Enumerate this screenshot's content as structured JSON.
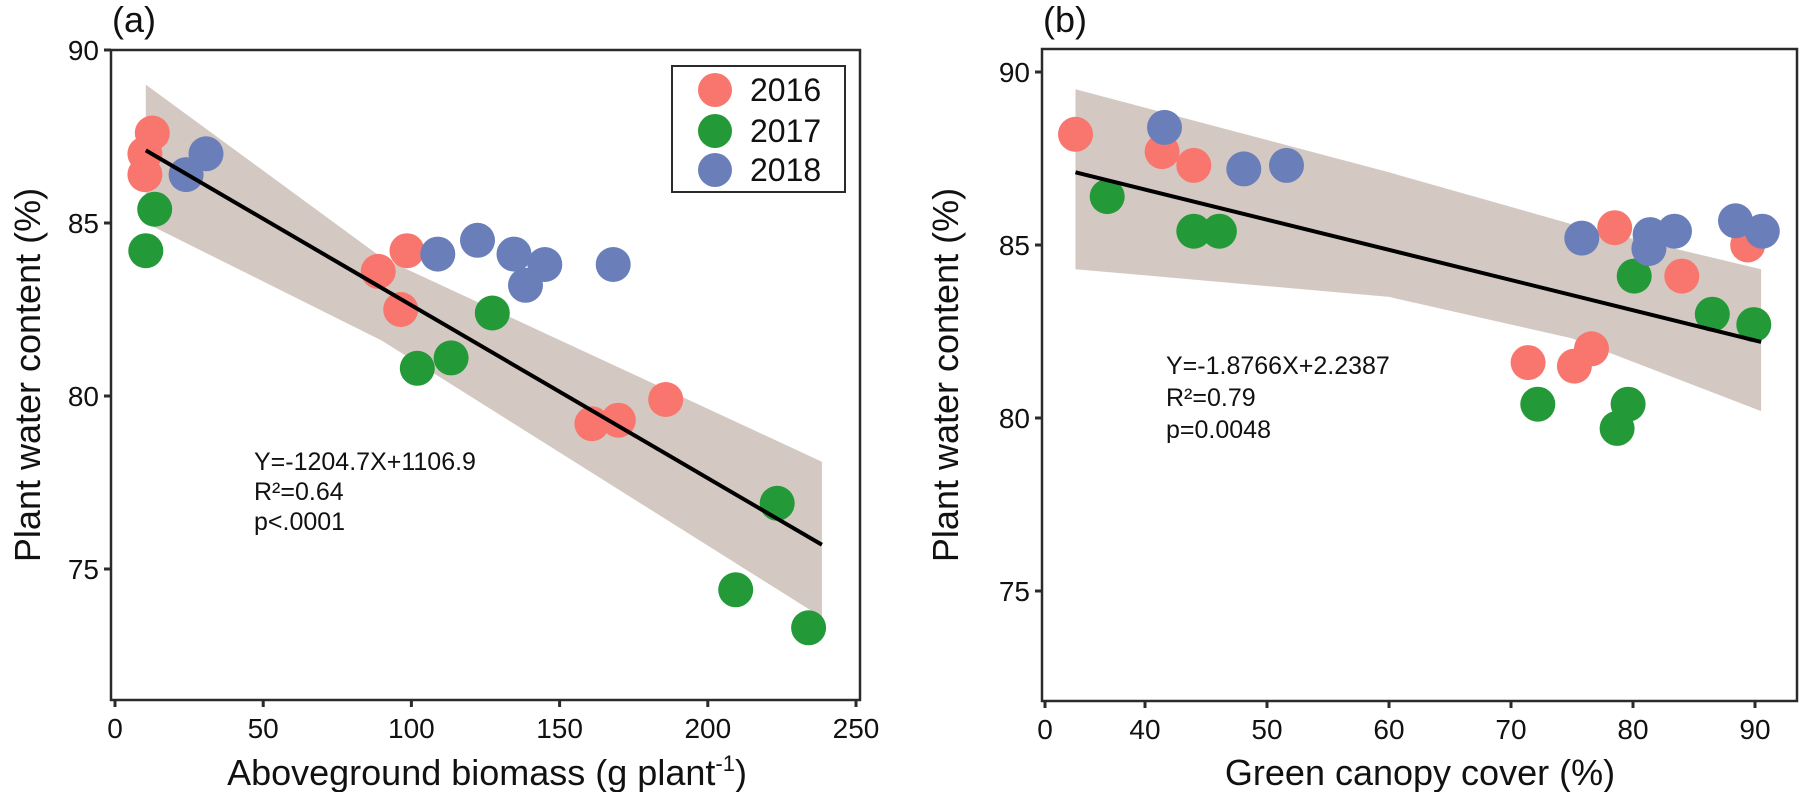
{
  "chart_data": [
    {
      "type": "scatter",
      "panel_label": "(a)",
      "title": "",
      "xlabel": "Aboveground biomass (g plant",
      "xlabel_superscript": "-1",
      "xlabel_suffix": ")",
      "ylabel": "Plant water content (%)",
      "xlim": [
        0,
        250
      ],
      "ylim": [
        71.6,
        90
      ],
      "xticks": [
        0,
        50,
        100,
        150,
        200,
        250
      ],
      "xtick_labels": [
        "0",
        "50",
        "100",
        "150",
        "200",
        "250"
      ],
      "yticks": [
        75,
        80,
        85,
        90
      ],
      "ytick_labels": [
        "75",
        "80",
        "85",
        "90"
      ],
      "grid": false,
      "legend": {
        "placement": "top-right",
        "entries": [
          "2016",
          "2017",
          "2018"
        ]
      },
      "series": [
        {
          "name": "2016",
          "color": "#F8766D",
          "points": [
            [
              12.6,
              87.6
            ],
            [
              10.1,
              87.0
            ],
            [
              10.1,
              86.4
            ],
            [
              88.8,
              83.6
            ],
            [
              98.5,
              84.2
            ],
            [
              96.4,
              82.5
            ],
            [
              160.9,
              79.2
            ],
            [
              169.8,
              79.3
            ],
            [
              185.8,
              79.9
            ]
          ]
        },
        {
          "name": "2017",
          "color": "#239A37",
          "points": [
            [
              13.4,
              85.4
            ],
            [
              10.4,
              84.2
            ],
            [
              102.0,
              80.8
            ],
            [
              113.4,
              81.1
            ],
            [
              127.3,
              82.4
            ],
            [
              223.4,
              76.9
            ],
            [
              209.4,
              74.4
            ],
            [
              234.0,
              73.3
            ]
          ]
        },
        {
          "name": "2018",
          "color": "#6A7FBA",
          "points": [
            [
              24.0,
              86.4
            ],
            [
              30.7,
              87.0
            ],
            [
              108.9,
              84.1
            ],
            [
              122.3,
              84.5
            ],
            [
              134.6,
              84.1
            ],
            [
              145.0,
              83.8
            ],
            [
              138.5,
              83.2
            ],
            [
              168.1,
              83.8
            ]
          ]
        }
      ],
      "fit": {
        "x_range": [
          10.4,
          238.5
        ],
        "y_at_range": [
          87.1,
          75.7
        ],
        "ci_upper": [
          [
            10.4,
            89.0
          ],
          [
            90,
            84.0
          ],
          [
            238.5,
            78.1
          ]
        ],
        "ci_lower": [
          [
            10.4,
            85.0
          ],
          [
            90,
            81.6
          ],
          [
            238.5,
            73.6
          ]
        ],
        "color": "#000000",
        "band_color": "#D4C9C2"
      },
      "annotations": [
        "Y=-1204.7X+1106.9",
        "R²=0.64",
        "p<.0001"
      ]
    },
    {
      "type": "scatter",
      "panel_label": "(b)",
      "title": "",
      "xlabel": "Green canopy cover (%)",
      "ylabel": "Plant water content (%)",
      "xlim": [
        31.8,
        93.4
      ],
      "x_axis_break": true,
      "ylim": [
        72.2,
        90.7
      ],
      "xticks": [
        0,
        40,
        50,
        60,
        70,
        80,
        90
      ],
      "xtick_labels": [
        "0",
        "40",
        "50",
        "60",
        "70",
        "80",
        "90"
      ],
      "yticks": [
        75,
        80,
        85,
        90
      ],
      "ytick_labels": [
        "75",
        "80",
        "85",
        "90"
      ],
      "grid": false,
      "series": [
        {
          "name": "2016",
          "color": "#F8766D",
          "points": [
            [
              34.3,
              88.2
            ],
            [
              41.4,
              87.7
            ],
            [
              44.0,
              87.3
            ],
            [
              78.5,
              85.5
            ],
            [
              89.4,
              85.0
            ],
            [
              84.0,
              84.1
            ],
            [
              71.4,
              81.6
            ],
            [
              76.6,
              82.0
            ],
            [
              75.2,
              81.5
            ]
          ]
        },
        {
          "name": "2017",
          "color": "#239A37",
          "points": [
            [
              36.9,
              86.4
            ],
            [
              44.0,
              85.4
            ],
            [
              46.1,
              85.4
            ],
            [
              80.1,
              84.1
            ],
            [
              86.5,
              83.0
            ],
            [
              89.9,
              82.7
            ],
            [
              72.2,
              80.4
            ],
            [
              79.6,
              80.4
            ],
            [
              78.7,
              79.7
            ]
          ]
        },
        {
          "name": "2018",
          "color": "#6A7FBA",
          "points": [
            [
              41.6,
              88.4
            ],
            [
              48.1,
              87.2
            ],
            [
              51.6,
              87.3
            ],
            [
              75.8,
              85.2
            ],
            [
              81.4,
              85.3
            ],
            [
              83.4,
              85.4
            ],
            [
              81.3,
              84.9
            ],
            [
              88.4,
              85.7
            ],
            [
              90.6,
              85.4
            ]
          ]
        }
      ],
      "fit": {
        "x_range": [
          34.3,
          90.5
        ],
        "y_at_range": [
          87.1,
          82.2
        ],
        "ci_upper": [
          [
            34.3,
            89.5
          ],
          [
            60,
            87.1
          ],
          [
            75,
            85.6
          ],
          [
            90.5,
            84.3
          ]
        ],
        "ci_lower": [
          [
            34.3,
            84.3
          ],
          [
            60,
            83.5
          ],
          [
            75,
            82.3
          ],
          [
            90.5,
            80.2
          ]
        ],
        "color": "#000000",
        "band_color": "#D4C9C2"
      },
      "annotations": [
        "Y=-1.8766X+2.2387",
        "R²=0.79",
        "p=0.0048"
      ]
    }
  ]
}
